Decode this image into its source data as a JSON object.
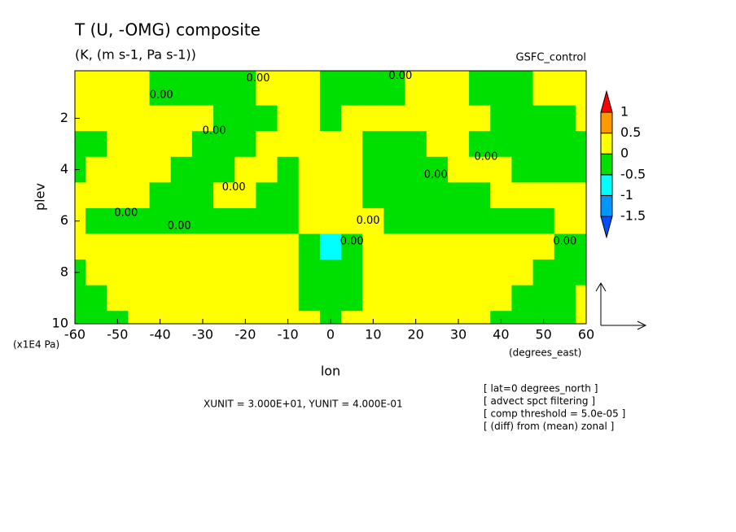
{
  "chart_data": {
    "type": "contour",
    "title": "T (U, -OMG) composite",
    "subtitle": "(K, (m s-1, Pa s-1))",
    "label_right": "GSFC_control",
    "ylabel": "plev",
    "yunit": "(x1E4 Pa)",
    "xlabel": "lon",
    "xunit": "(degrees_east)",
    "vector_units": "XUNIT = 3.000E+01, YUNIT = 4.000E-01",
    "notes": [
      "[ lat=0 degrees_north ]",
      "[ advect spct filtering ]",
      "[ comp threshold = 5.0e-05 ]",
      "[ (diff) from (mean) zonal ]"
    ],
    "xlim": [
      -60,
      60
    ],
    "xticks": [
      -60,
      -50,
      -40,
      -30,
      -20,
      -10,
      0,
      10,
      20,
      30,
      40,
      50,
      60
    ],
    "ylim": [
      10,
      0.15
    ],
    "yticks": [
      2,
      4,
      6,
      8,
      10
    ],
    "levels": [
      -1.5,
      -1,
      -0.5,
      0,
      0.5,
      1
    ],
    "colors": [
      "#0050ff",
      "#0096ff",
      "#00ffff",
      "#00e000",
      "#ffff00",
      "#ff9900",
      "#ff0000"
    ],
    "x": [
      -60,
      -55,
      -50,
      -45,
      -40,
      -35,
      -30,
      -25,
      -20,
      -15,
      -10,
      -5,
      0,
      5,
      10,
      15,
      20,
      25,
      30,
      35,
      40,
      45,
      50,
      55,
      60
    ],
    "y": [
      1,
      2,
      3,
      4,
      5,
      6,
      7,
      8,
      9,
      10
    ],
    "z": [
      [
        0.25,
        0.25,
        0.25,
        0.25,
        -0.25,
        -0.25,
        -0.25,
        -0.25,
        -0.25,
        0.25,
        0.25,
        0.25,
        -0.25,
        -0.25,
        -0.25,
        -0.25,
        0.25,
        0.25,
        0.25,
        -0.25,
        -0.25,
        -0.25,
        0.25,
        0.25,
        0.25
      ],
      [
        0.25,
        0.25,
        0.25,
        0.25,
        0.25,
        0.25,
        0.25,
        -0.25,
        -0.25,
        -0.25,
        0.25,
        0.25,
        -0.25,
        0.25,
        0.25,
        0.25,
        0.25,
        0.25,
        0.25,
        0.25,
        -0.25,
        -0.25,
        -0.25,
        -0.25,
        0.25
      ],
      [
        -0.25,
        -0.25,
        0.25,
        0.25,
        0.25,
        0.25,
        -0.25,
        -0.25,
        -0.25,
        0.25,
        0.25,
        0.25,
        0.25,
        0.25,
        -0.25,
        -0.25,
        -0.25,
        0.25,
        0.25,
        -0.25,
        -0.25,
        -0.25,
        -0.25,
        -0.25,
        -0.25
      ],
      [
        -0.25,
        0.25,
        0.25,
        0.25,
        0.25,
        -0.25,
        -0.25,
        -0.25,
        0.25,
        0.25,
        -0.25,
        0.25,
        0.25,
        0.25,
        -0.25,
        -0.25,
        -0.25,
        -0.25,
        0.25,
        0.25,
        0.25,
        -0.25,
        -0.25,
        -0.25,
        -0.25
      ],
      [
        0.25,
        0.25,
        0.25,
        0.25,
        -0.25,
        -0.25,
        -0.25,
        0.25,
        0.25,
        -0.25,
        -0.25,
        0.25,
        0.25,
        0.25,
        -0.25,
        -0.25,
        -0.25,
        -0.25,
        -0.25,
        -0.25,
        0.25,
        0.25,
        0.25,
        0.25,
        0.25
      ],
      [
        0.25,
        -0.25,
        -0.25,
        -0.25,
        -0.25,
        -0.25,
        -0.25,
        -0.25,
        -0.25,
        -0.25,
        -0.25,
        0.25,
        0.25,
        0.25,
        0.25,
        -0.25,
        -0.25,
        -0.25,
        -0.25,
        -0.25,
        -0.25,
        -0.25,
        -0.25,
        0.25,
        0.25
      ],
      [
        0.25,
        0.25,
        0.25,
        0.25,
        0.25,
        0.25,
        0.25,
        0.25,
        0.25,
        0.25,
        0.25,
        -0.25,
        -0.75,
        -0.25,
        0.25,
        0.25,
        0.25,
        0.25,
        0.25,
        0.25,
        0.25,
        0.25,
        0.25,
        -0.25,
        -0.25
      ],
      [
        -0.25,
        0.25,
        0.25,
        0.25,
        0.25,
        0.25,
        0.25,
        0.25,
        0.25,
        0.25,
        0.25,
        -0.25,
        -0.25,
        -0.25,
        0.25,
        0.25,
        0.25,
        0.25,
        0.25,
        0.25,
        0.25,
        0.25,
        -0.25,
        -0.25,
        -0.25
      ],
      [
        -0.25,
        -0.25,
        0.25,
        0.25,
        0.25,
        0.25,
        0.25,
        0.25,
        0.25,
        0.25,
        0.25,
        -0.25,
        -0.25,
        -0.25,
        0.25,
        0.25,
        0.25,
        0.25,
        0.25,
        0.25,
        0.25,
        -0.25,
        -0.25,
        -0.25,
        0.25
      ],
      [
        -0.25,
        -0.25,
        -0.25,
        0.25,
        0.25,
        0.25,
        0.25,
        0.25,
        0.25,
        0.25,
        0.25,
        0.25,
        -0.25,
        0.25,
        0.25,
        0.25,
        0.25,
        0.25,
        0.25,
        0.25,
        -0.25,
        -0.25,
        -0.25,
        -0.25,
        0.25
      ]
    ],
    "contour_labels": [
      {
        "text": "0.00",
        "x": -17,
        "y": 0.45
      },
      {
        "text": "0.00",
        "x": 16.4,
        "y": 0.35
      },
      {
        "text": "0.00",
        "x": -39.7,
        "y": 1.1
      },
      {
        "text": "0.00",
        "x": -27.3,
        "y": 2.5
      },
      {
        "text": "0.00",
        "x": 36.5,
        "y": 3.5
      },
      {
        "text": "0.00",
        "x": -22.7,
        "y": 4.7
      },
      {
        "text": "0.00",
        "x": 24.7,
        "y": 4.2
      },
      {
        "text": "0.00",
        "x": -48,
        "y": 5.7
      },
      {
        "text": "0.00",
        "x": -35.5,
        "y": 6.2
      },
      {
        "text": "0.00",
        "x": 8.8,
        "y": 6
      },
      {
        "text": "0.00",
        "x": 5,
        "y": 6.8
      },
      {
        "text": "0.00",
        "x": 55,
        "y": 6.8
      }
    ]
  }
}
